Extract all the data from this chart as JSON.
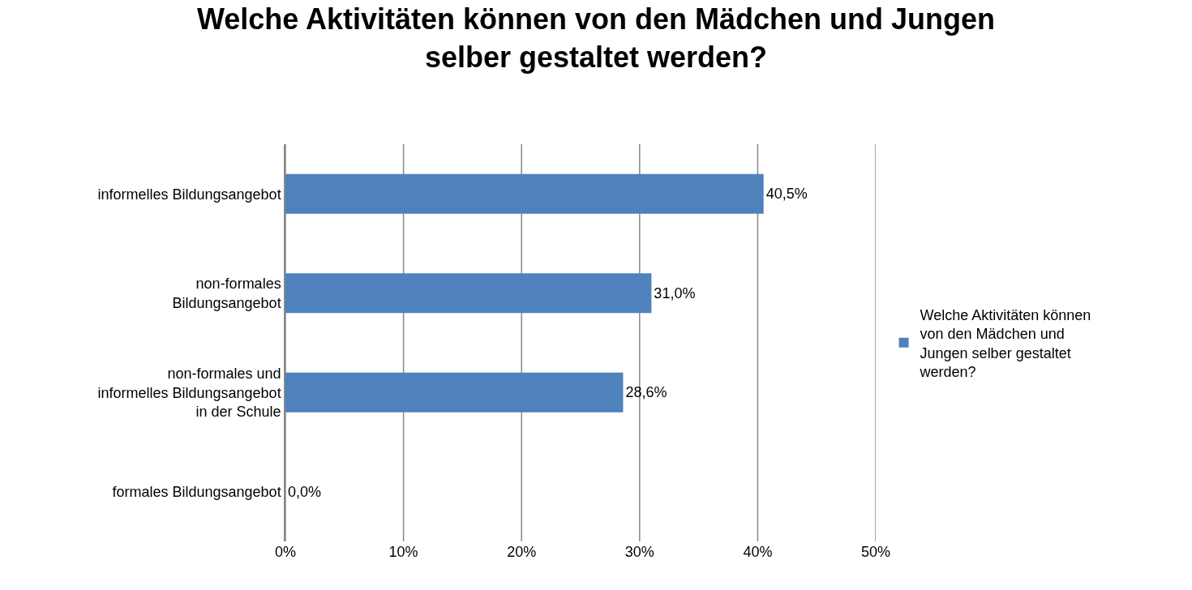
{
  "chart_data": {
    "type": "bar",
    "orientation": "horizontal",
    "title": "Welche Aktivitäten können von den Mädchen und Jungen selber gestaltet werden?",
    "categories": [
      "informelles Bildungsangebot",
      "non-formales Bildungsangebot",
      "non-formales und informelles Bildungsangebot in der Schule",
      "formales Bildungsangebot"
    ],
    "series": [
      {
        "name": "Welche Aktivitäten können von den Mädchen und Jungen selber gestaltet werden?",
        "color": "#4f81bd",
        "values": [
          40.5,
          31.0,
          28.6,
          0.0
        ],
        "value_labels": [
          "40,5%",
          "31,0%",
          "28,6%",
          "0,0%"
        ]
      }
    ],
    "xlim": [
      0,
      50
    ],
    "xticks": [
      {
        "value": 0,
        "label": "0%"
      },
      {
        "value": 10,
        "label": "10%"
      },
      {
        "value": 20,
        "label": "20%"
      },
      {
        "value": 30,
        "label": "30%"
      },
      {
        "value": 40,
        "label": "40%"
      },
      {
        "value": 50,
        "label": "50%"
      }
    ],
    "grid": "x",
    "legend": "right"
  }
}
